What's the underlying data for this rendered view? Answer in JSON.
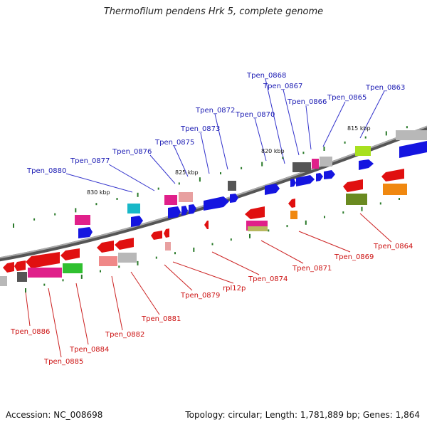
{
  "title": "Thermofilum pendens Hrk 5, complete genome",
  "footer": {
    "accession": "Accession: NC_008698",
    "summary": "Topology: circular; Length: 1,781,889 bp; Genes: 1,864"
  },
  "colors": {
    "plus_label": "#1a1ab3",
    "minus_label": "#cc1111"
  },
  "scale_labels": [
    "830 kbp",
    "825 kbp",
    "820 kbp",
    "815 kbp"
  ],
  "top_labels": [
    "Tpen_0880",
    "Tpen_0877",
    "Tpen_0876",
    "Tpen_0875",
    "Tpen_0873",
    "Tpen_0872",
    "Tpen_0870",
    "Tpen_0868",
    "Tpen_0867",
    "Tpen_0866",
    "Tpen_0865",
    "Tpen_0863"
  ],
  "bottom_labels": [
    "Tpen_0886",
    "Tpen_0885",
    "Tpen_0884",
    "Tpen_0882",
    "Tpen_0881",
    "Tpen_0879",
    "rpl12p",
    "Tpen_0874",
    "Tpen_0871",
    "Tpen_0869",
    "Tpen_0864"
  ]
}
